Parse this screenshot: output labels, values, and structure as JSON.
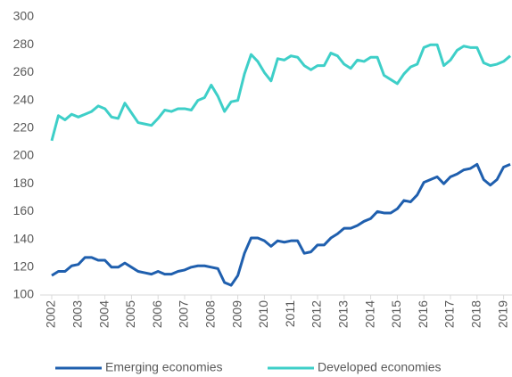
{
  "chart_data": {
    "type": "line",
    "categories": [
      "2002",
      null,
      null,
      null,
      "2003",
      null,
      null,
      null,
      "2004",
      null,
      null,
      null,
      "2005",
      null,
      null,
      null,
      "2006",
      null,
      null,
      null,
      "2007",
      null,
      null,
      null,
      "2008",
      null,
      null,
      null,
      "2009",
      null,
      null,
      null,
      "2010",
      null,
      null,
      null,
      "2011",
      null,
      null,
      null,
      "2012",
      null,
      null,
      null,
      "2013",
      null,
      null,
      null,
      "2014",
      null,
      null,
      null,
      "2015",
      null,
      null,
      null,
      "2016",
      null,
      null,
      null,
      "2017",
      null,
      null,
      null,
      "2018",
      null,
      null,
      null,
      "2019",
      null
    ],
    "series": [
      {
        "name": "Emerging economies",
        "color": "#1f5fae",
        "values": [
          114,
          117,
          117,
          121,
          122,
          127,
          127,
          125,
          125,
          120,
          120,
          123,
          120,
          117,
          116,
          115,
          117,
          115,
          115,
          117,
          118,
          120,
          121,
          121,
          120,
          119,
          109,
          107,
          114,
          130,
          141,
          141,
          139,
          135,
          139,
          138,
          139,
          139,
          130,
          131,
          136,
          136,
          141,
          144,
          148,
          148,
          150,
          153,
          155,
          160,
          159,
          159,
          162,
          168,
          167,
          172,
          181,
          183,
          185,
          180,
          185,
          187,
          190,
          191,
          194,
          183,
          179,
          183,
          192,
          194
        ]
      },
      {
        "name": "Developed economies",
        "color": "#3ecfc8",
        "values": [
          211,
          229,
          226,
          230,
          228,
          230,
          232,
          236,
          234,
          228,
          227,
          238,
          231,
          224,
          223,
          222,
          227,
          233,
          232,
          234,
          234,
          233,
          240,
          242,
          251,
          243,
          232,
          239,
          240,
          259,
          273,
          268,
          260,
          254,
          270,
          269,
          272,
          271,
          265,
          262,
          265,
          265,
          274,
          272,
          266,
          263,
          269,
          268,
          271,
          271,
          258,
          255,
          252,
          259,
          264,
          266,
          278,
          280,
          280,
          265,
          269,
          276,
          279,
          278,
          278,
          267,
          265,
          266,
          268,
          272
        ]
      }
    ],
    "ylim": [
      100,
      300
    ],
    "yticks": [
      100,
      120,
      140,
      160,
      180,
      200,
      220,
      240,
      260,
      280,
      300
    ]
  }
}
